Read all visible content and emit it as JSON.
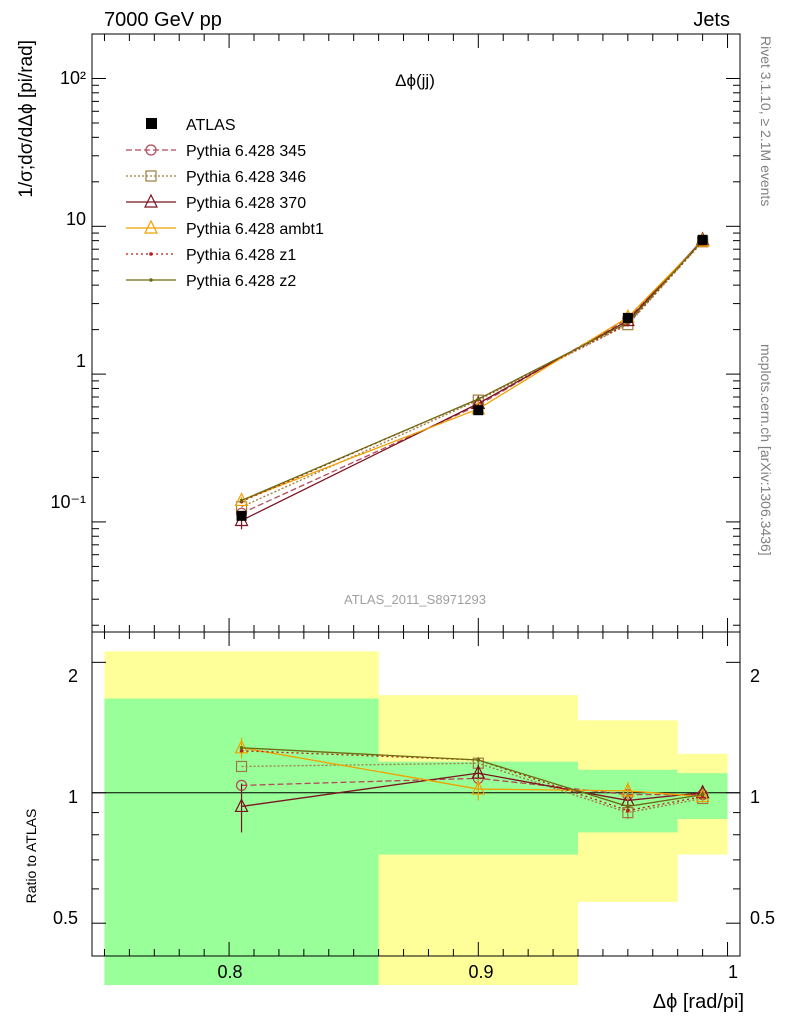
{
  "header": {
    "left": "7000 GeV pp",
    "right": "Jets"
  },
  "side_labels": {
    "rivet": "Rivet 3.1.10, ≥ 2.1M events",
    "mcplots": "mcplots.cern.ch [arXiv:1306.3436]"
  },
  "main_panel": {
    "title": "Δϕ(jj)",
    "ylabel": "1/σ;dσ/dΔϕ [pi/rad]",
    "watermark": "ATLAS_2011_S8971293",
    "ytick_labels": [
      "10⁻¹",
      "1",
      "10",
      "10²"
    ]
  },
  "ratio_panel": {
    "ylabel": "Ratio to ATLAS",
    "ytick_labels": [
      "0.5",
      "1",
      "2"
    ]
  },
  "xaxis": {
    "label": "Δϕ [rad/pi]",
    "tick_labels": [
      "0.8",
      "0.9",
      "1"
    ]
  },
  "legend": [
    {
      "label": "ATLAS"
    },
    {
      "label": "Pythia 6.428 345"
    },
    {
      "label": "Pythia 6.428 346"
    },
    {
      "label": "Pythia 6.428 370"
    },
    {
      "label": "Pythia 6.428 ambt1"
    },
    {
      "label": "Pythia 6.428 z1"
    },
    {
      "label": "Pythia 6.428 z2"
    }
  ],
  "chart_data": {
    "type": "line",
    "x_scale": "linear",
    "main_y_scale": "log",
    "ratio_y_scale": "log",
    "xlim": [
      0.745,
      1.005
    ],
    "main_ylim": [
      0.018,
      200
    ],
    "ratio_ylim": [
      0.42,
      2.35
    ],
    "x": [
      0.805,
      0.9,
      0.96,
      0.99
    ],
    "bins": [
      [
        0.75,
        0.86
      ],
      [
        0.86,
        0.94
      ],
      [
        0.94,
        0.98
      ],
      [
        0.98,
        1.0
      ]
    ],
    "data": {
      "name": "ATLAS",
      "values": [
        0.11,
        0.57,
        2.4,
        8.1
      ],
      "band_inner": [
        [
          0.36,
          1.65
        ],
        [
          0.72,
          1.18
        ],
        [
          0.81,
          1.13
        ],
        [
          0.87,
          1.11
        ]
      ],
      "band_outer": [
        [
          0.36,
          2.12
        ],
        [
          0.36,
          1.68
        ],
        [
          0.56,
          1.47
        ],
        [
          0.72,
          1.23
        ]
      ]
    },
    "series": [
      {
        "name": "Pythia 6.428 345",
        "color": "#b5485a",
        "dash": "6,3",
        "marker": "circle",
        "ratio": [
          1.04,
          1.08,
          0.99,
          0.99
        ],
        "err": [
          0.0,
          0.04,
          0.03,
          0.02
        ]
      },
      {
        "name": "Pythia 6.428 346",
        "color": "#a07a3c",
        "dash": "2,2",
        "marker": "square",
        "ratio": [
          1.15,
          1.17,
          0.9,
          0.97
        ],
        "err": [
          0.0,
          0.04,
          0.03,
          0.02
        ]
      },
      {
        "name": "Pythia 6.428 370",
        "color": "#7a1420",
        "dash": "",
        "marker": "triangle",
        "ratio": [
          0.93,
          1.11,
          0.96,
          1.0
        ],
        "err": [
          0.12,
          0.05,
          0.04,
          0.03
        ]
      },
      {
        "name": "Pythia 6.428 ambt1",
        "color": "#f0a000",
        "dash": "",
        "marker": "triangle",
        "ratio": [
          1.27,
          1.02,
          1.01,
          0.98
        ],
        "err": [
          0.07,
          0.06,
          0.05,
          0.02
        ]
      },
      {
        "name": "Pythia 6.428 z1",
        "color": "#c01818",
        "dash": "2,3",
        "marker": "dot",
        "ratio": [
          1.25,
          1.19,
          0.91,
          0.98
        ],
        "err": [
          0.0,
          0.0,
          0.0,
          0.0
        ]
      },
      {
        "name": "Pythia 6.428 z2",
        "color": "#6b6b10",
        "dash": "",
        "marker": "dot",
        "ratio": [
          1.27,
          1.19,
          0.93,
          0.99
        ],
        "err": [
          0.0,
          0.0,
          0.0,
          0.0
        ]
      }
    ]
  }
}
